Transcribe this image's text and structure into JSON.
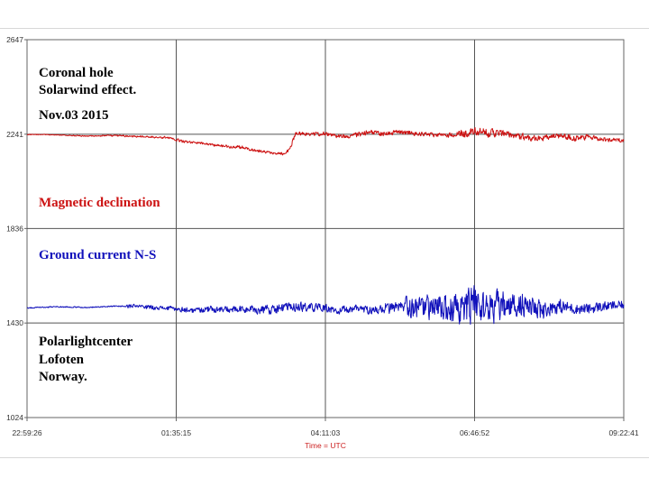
{
  "chart_data": {
    "type": "line",
    "title": "",
    "xlabel": "Time = UTC",
    "ylabel": "",
    "x_ticks": [
      "22:59:26",
      "01:35:15",
      "04:11:03",
      "06:46:52",
      "09:22:41"
    ],
    "y_ticks": [
      2647,
      2241,
      1836,
      1430,
      1024
    ],
    "ylim": [
      1024,
      2647
    ],
    "grid": true,
    "annotations": {
      "top_left": [
        "Coronal hole",
        "Solarwind effect."
      ],
      "date": "Nov.03 2015",
      "bottom_left": [
        "Polarlightcenter",
        "Lofoten",
        "Norway."
      ]
    },
    "series": [
      {
        "name": "Magnetic declination",
        "color": "#cc1111",
        "points": [
          [
            0,
            2240
          ],
          [
            0.05,
            2238
          ],
          [
            0.1,
            2233
          ],
          [
            0.15,
            2235
          ],
          [
            0.2,
            2231
          ],
          [
            0.24,
            2225
          ],
          [
            0.26,
            2210
          ],
          [
            0.28,
            2205
          ],
          [
            0.3,
            2200
          ],
          [
            0.32,
            2192
          ],
          [
            0.34,
            2186
          ],
          [
            0.36,
            2186
          ],
          [
            0.38,
            2172
          ],
          [
            0.4,
            2164
          ],
          [
            0.42,
            2157
          ],
          [
            0.43,
            2161
          ],
          [
            0.44,
            2175
          ],
          [
            0.45,
            2245
          ],
          [
            0.47,
            2242
          ],
          [
            0.5,
            2242
          ],
          [
            0.52,
            2233
          ],
          [
            0.55,
            2237
          ],
          [
            0.58,
            2250
          ],
          [
            0.6,
            2241
          ],
          [
            0.62,
            2250
          ],
          [
            0.65,
            2245
          ],
          [
            0.68,
            2238
          ],
          [
            0.7,
            2236
          ],
          [
            0.72,
            2241
          ],
          [
            0.75,
            2250
          ],
          [
            0.78,
            2247
          ],
          [
            0.8,
            2242
          ],
          [
            0.83,
            2230
          ],
          [
            0.86,
            2223
          ],
          [
            0.88,
            2230
          ],
          [
            0.9,
            2236
          ],
          [
            0.92,
            2222
          ],
          [
            0.94,
            2230
          ],
          [
            0.97,
            2218
          ],
          [
            1.0,
            2215
          ]
        ],
        "noise": [
          2,
          2,
          2,
          3,
          3,
          4,
          5,
          5,
          5,
          6,
          7,
          6,
          7,
          7,
          8,
          7,
          6,
          10,
          9,
          11,
          10,
          12,
          14,
          13,
          12,
          12,
          10,
          10,
          14,
          20,
          22,
          20,
          16,
          18,
          16,
          14,
          18,
          14,
          12,
          10
        ]
      },
      {
        "name": "Ground current N-S",
        "color": "#1111bb",
        "points": [
          [
            0,
            1495
          ],
          [
            0.05,
            1500
          ],
          [
            0.1,
            1497
          ],
          [
            0.15,
            1503
          ],
          [
            0.2,
            1500
          ],
          [
            0.25,
            1490
          ],
          [
            0.28,
            1484
          ],
          [
            0.3,
            1490
          ],
          [
            0.35,
            1487
          ],
          [
            0.4,
            1487
          ],
          [
            0.45,
            1500
          ],
          [
            0.5,
            1494
          ],
          [
            0.52,
            1480
          ],
          [
            0.55,
            1495
          ],
          [
            0.58,
            1484
          ],
          [
            0.6,
            1492
          ],
          [
            0.65,
            1498
          ],
          [
            0.7,
            1490
          ],
          [
            0.73,
            1492
          ],
          [
            0.75,
            1510
          ],
          [
            0.77,
            1500
          ],
          [
            0.8,
            1497
          ],
          [
            0.83,
            1510
          ],
          [
            0.86,
            1480
          ],
          [
            0.88,
            1500
          ],
          [
            0.9,
            1498
          ],
          [
            0.92,
            1492
          ],
          [
            0.94,
            1490
          ],
          [
            0.96,
            1500
          ],
          [
            1.0,
            1507
          ]
        ],
        "noise": [
          3,
          3,
          3,
          3,
          3,
          10,
          12,
          13,
          15,
          17,
          18,
          22,
          25,
          24,
          22,
          20,
          20,
          22,
          30,
          55,
          70,
          78,
          92,
          85,
          62,
          55,
          40,
          30,
          28,
          25
        ]
      }
    ]
  }
}
